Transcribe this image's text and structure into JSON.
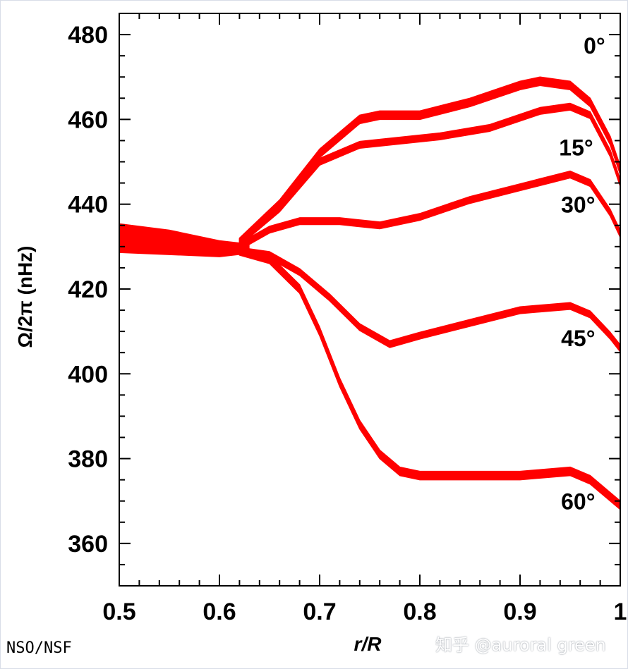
{
  "chart_data": {
    "type": "line",
    "xlabel": "r/R",
    "ylabel": "Ω/2π (nHz)",
    "xlim": [
      0.5,
      1.0
    ],
    "ylim": [
      350,
      485
    ],
    "x_ticks": [
      "0.5",
      "0.6",
      "0.7",
      "0.8",
      "0.9",
      "1"
    ],
    "y_ticks": [
      "360",
      "380",
      "400",
      "420",
      "440",
      "460",
      "480"
    ],
    "grid": false,
    "band_color": "#ff0000",
    "series": [
      {
        "name": "0°",
        "x": [
          0.62,
          0.66,
          0.7,
          0.74,
          0.76,
          0.8,
          0.85,
          0.9,
          0.92,
          0.95,
          0.97,
          0.99,
          1.0
        ],
        "y": [
          431,
          440,
          452,
          460,
          461,
          461,
          464,
          468,
          469,
          468,
          464,
          455,
          448
        ],
        "halfwidth": 1.0
      },
      {
        "name": "15°",
        "x": [
          0.62,
          0.66,
          0.7,
          0.74,
          0.78,
          0.82,
          0.87,
          0.92,
          0.95,
          0.97,
          0.99,
          1.0
        ],
        "y": [
          431,
          439,
          450,
          454,
          455,
          456,
          458,
          462,
          463,
          461,
          452,
          445
        ],
        "halfwidth": 0.8
      },
      {
        "name": "30°",
        "x": [
          0.62,
          0.65,
          0.68,
          0.72,
          0.76,
          0.8,
          0.85,
          0.9,
          0.95,
          0.97,
          0.99,
          1.0
        ],
        "y": [
          430,
          434,
          436,
          436,
          435,
          437,
          441,
          444,
          447,
          445,
          438,
          433
        ],
        "halfwidth": 0.8
      },
      {
        "name": "45°",
        "x": [
          0.62,
          0.65,
          0.68,
          0.71,
          0.74,
          0.77,
          0.8,
          0.85,
          0.9,
          0.95,
          0.97,
          0.99,
          1.0
        ],
        "y": [
          429,
          428,
          424,
          418,
          411,
          407,
          409,
          412,
          415,
          416,
          414,
          409,
          406
        ],
        "halfwidth": 0.8
      },
      {
        "name": "60°",
        "x": [
          0.62,
          0.65,
          0.68,
          0.7,
          0.72,
          0.74,
          0.76,
          0.78,
          0.8,
          0.85,
          0.9,
          0.95,
          0.97,
          0.99,
          1.0
        ],
        "y": [
          429,
          427,
          420,
          410,
          398,
          388,
          381,
          377,
          376,
          376,
          376,
          377,
          375,
          371,
          369
        ],
        "halfwidth": 1.0
      }
    ],
    "common_core": {
      "x": [
        0.5,
        0.55,
        0.6,
        0.63
      ],
      "y": [
        432,
        431,
        429.5,
        429.5
      ],
      "halfwidth": [
        3.5,
        3.0,
        2.0,
        1.2
      ]
    },
    "series_label_positions": [
      "near-top-right",
      "right",
      "right",
      "right",
      "right"
    ]
  },
  "footer": {
    "credit": "NSO/NSF",
    "watermark": "知乎 @auroral green"
  }
}
